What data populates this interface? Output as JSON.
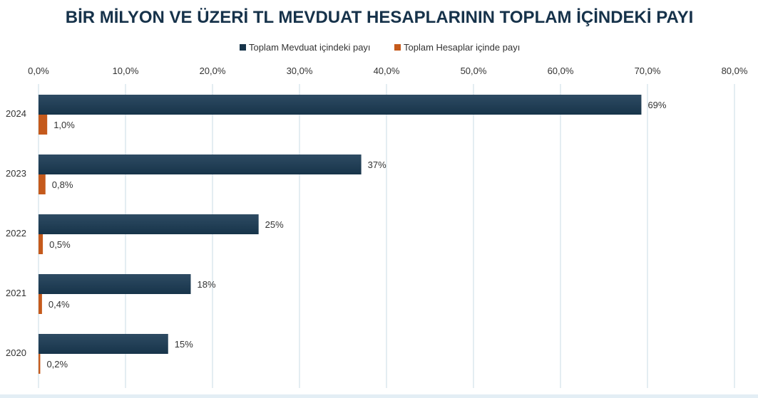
{
  "chart_data": {
    "type": "bar",
    "orientation": "horizontal",
    "title": "BİR MİLYON VE ÜZERİ TL MEVDUAT HESAPLARININ TOPLAM İÇİNDEKİ PAYI",
    "categories": [
      "2024",
      "2023",
      "2022",
      "2021",
      "2020"
    ],
    "series": [
      {
        "name": "Toplam Mevduat içindeki payı",
        "color": "#17344a",
        "values": [
          69.3,
          37.1,
          25.3,
          17.5,
          14.9
        ],
        "labels": [
          "69%",
          "37%",
          "25%",
          "18%",
          "15%"
        ]
      },
      {
        "name": "Toplam Hesaplar içinde payı",
        "color": "#c55a1c",
        "values": [
          1.0,
          0.8,
          0.5,
          0.4,
          0.2
        ],
        "labels": [
          "1,0%",
          "0,8%",
          "0,5%",
          "0,4%",
          "0,2%"
        ]
      }
    ],
    "xlim": [
      0,
      80
    ],
    "xticks": [
      0,
      10,
      20,
      30,
      40,
      50,
      60,
      70,
      80
    ],
    "xtick_labels": [
      "0,0%",
      "10,0%",
      "20,0%",
      "30,0%",
      "40,0%",
      "50,0%",
      "60,0%",
      "70,0%",
      "80,0%"
    ],
    "xaxis_position": "top",
    "grid": true,
    "legend_position": "top-center"
  }
}
